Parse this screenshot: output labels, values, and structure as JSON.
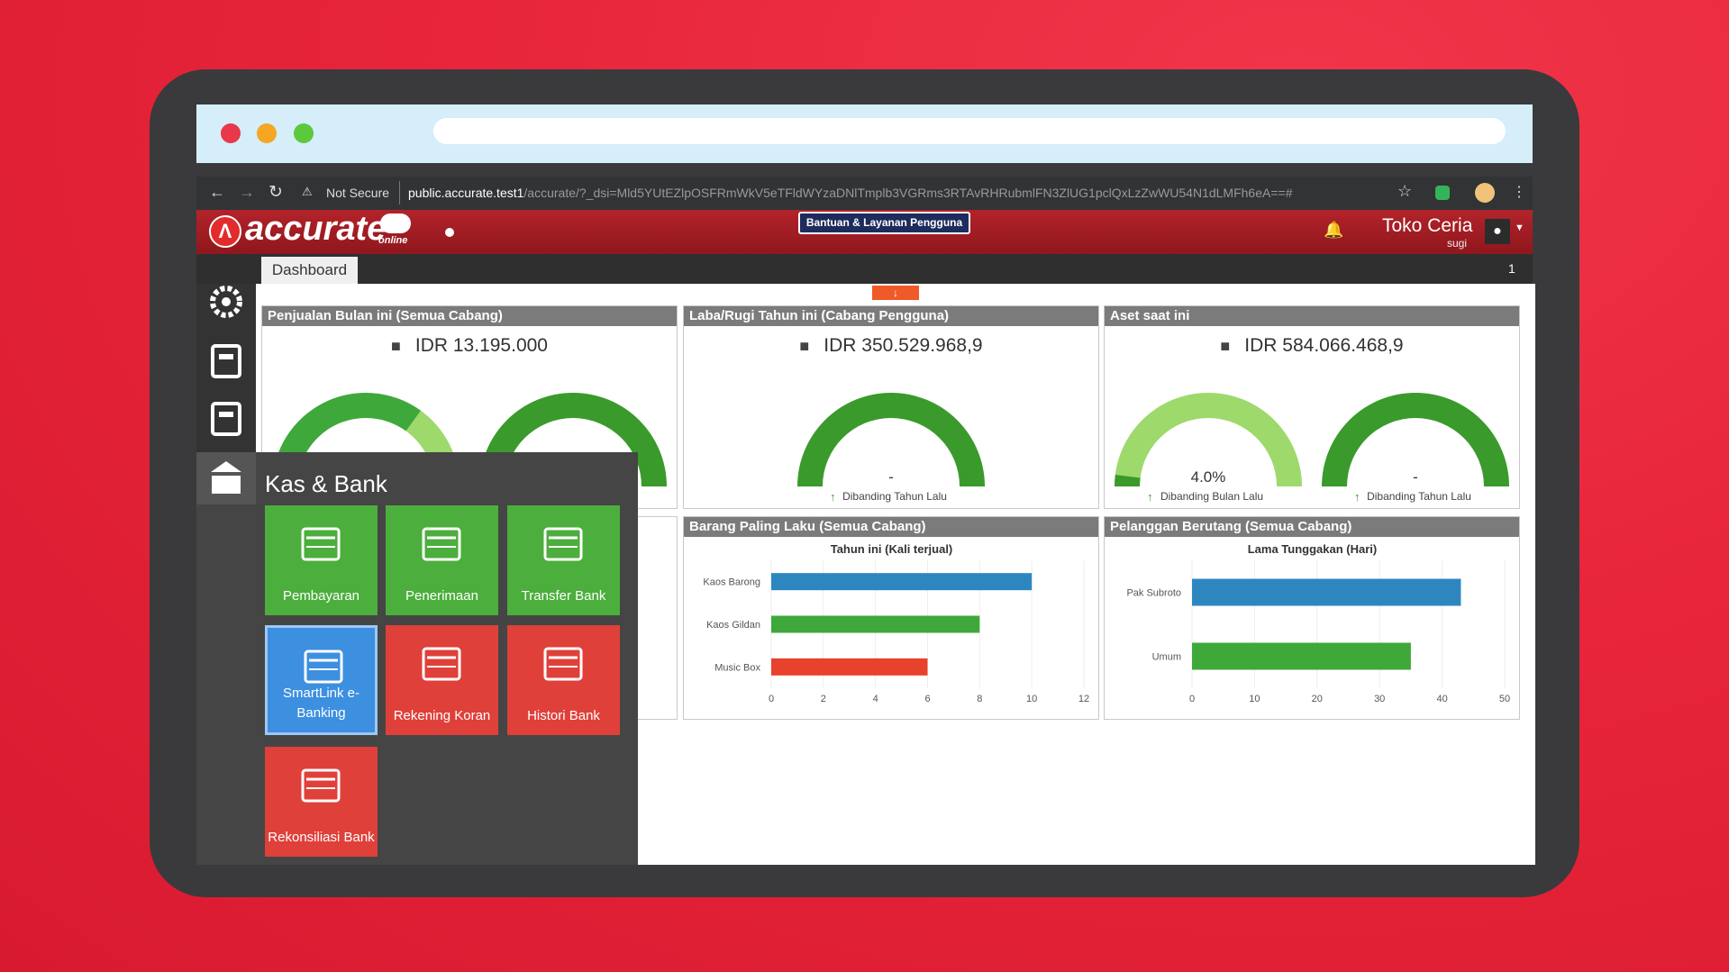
{
  "browser": {
    "security": "Not Secure",
    "url_host": "public.accurate.test1",
    "url_path": "/accurate/?_dsi=Mld5YUtEZlpOSFRmWkV5eTFldWYzaDNlTmplb3VGRms3RTAvRHRubmlFN3ZlUG1pclQxLzZwWU54N1dLMFh6eA==#"
  },
  "app": {
    "logo": "accurate",
    "logo_sub": "online",
    "help": "Bantuan & Layanan Pengguna",
    "user": "Toko Ceria",
    "user_sub": "sugi",
    "tab": "Dashboard",
    "page": "1"
  },
  "widgets": [
    {
      "title": "Penjualan Bulan ini (Semua Cabang)",
      "amount": "IDR 13.195.000"
    },
    {
      "title": "Laba/Rugi Tahun ini (Cabang Pengguna)",
      "amount": "IDR 350.529.968,9",
      "gauges": [
        {
          "value": "-",
          "caption": "Dibanding Tahun Lalu"
        }
      ]
    },
    {
      "title": "Aset saat ini",
      "amount": "IDR 584.066.468,9",
      "gauges": [
        {
          "value": "4.0%",
          "caption": "Dibanding Bulan Lalu"
        },
        {
          "value": "-",
          "caption": "Dibanding Tahun Lalu"
        }
      ]
    },
    {
      "title": "Barang Paling Laku (Semua Cabang)",
      "chart_data": {
        "type": "bar",
        "orientation": "horizontal",
        "title": "Tahun ini (Kali terjual)",
        "categories": [
          "Kaos Barong",
          "Kaos Gildan",
          "Music Box"
        ],
        "values": [
          10,
          8,
          6
        ],
        "colors": [
          "#2e86c1",
          "#3fa83a",
          "#e8412c"
        ],
        "xlim": [
          0,
          12
        ],
        "xticks": [
          0,
          2,
          4,
          6,
          8,
          10,
          12
        ],
        "grid": true
      }
    },
    {
      "title": "Pelanggan Berutang (Semua Cabang)",
      "chart_data": {
        "type": "bar",
        "orientation": "horizontal",
        "title": "Lama Tunggakan (Hari)",
        "categories": [
          "Pak Subroto",
          "Umum"
        ],
        "values": [
          43,
          35
        ],
        "colors": [
          "#2e86c1",
          "#3fa83a"
        ],
        "xlim": [
          0,
          50
        ],
        "xticks": [
          0,
          10,
          20,
          30,
          40,
          50
        ],
        "grid": true
      }
    }
  ],
  "menu": {
    "title": "Kas & Bank",
    "items": [
      "Pembayaran",
      "Penerimaan",
      "Transfer Bank",
      "SmartLink e-Banking",
      "Rekening Koran",
      "Histori Bank",
      "Rekonsiliasi Bank"
    ]
  }
}
